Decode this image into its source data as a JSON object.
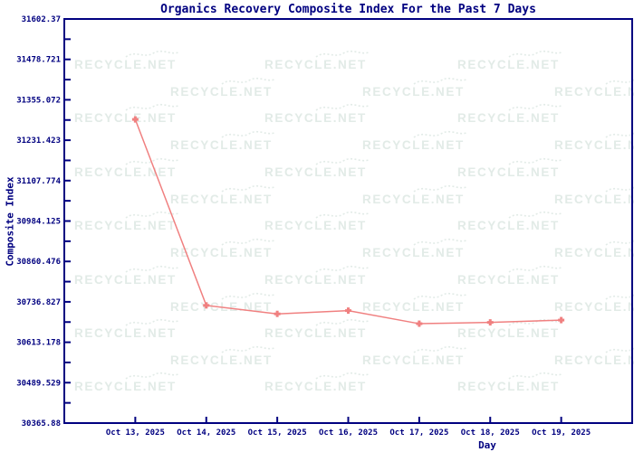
{
  "watermark": {
    "text": "RECYCLE.NET",
    "color": "#e2ebe7"
  },
  "chart_data": {
    "type": "line",
    "title": "Organics Recovery Composite Index For the Past 7 Days",
    "xlabel": "Day",
    "ylabel": "Composite Index",
    "categories": [
      "Oct 13, 2025",
      "Oct 14, 2025",
      "Oct 15, 2025",
      "Oct 16, 2025",
      "Oct 17, 2025",
      "Oct 18, 2025",
      "Oct 19, 2025"
    ],
    "series": [
      {
        "name": "Organics Recovery Composite Index",
        "values": [
          31295,
          30726,
          30700,
          30710,
          30670,
          30674,
          30681
        ]
      }
    ],
    "ylim": [
      30365.88,
      31602.37
    ],
    "ytick_labels": [
      "31602.37",
      "31478.721",
      "31355.072",
      "31231.423",
      "31107.774",
      "30984.125",
      "30860.476",
      "30736.827",
      "30613.178",
      "30489.529",
      "30365.88"
    ],
    "grid": false,
    "legend": "none",
    "marker": "plus",
    "series_color": "#f08080",
    "axis_color": "#000080",
    "background_color": "#ffffff"
  }
}
